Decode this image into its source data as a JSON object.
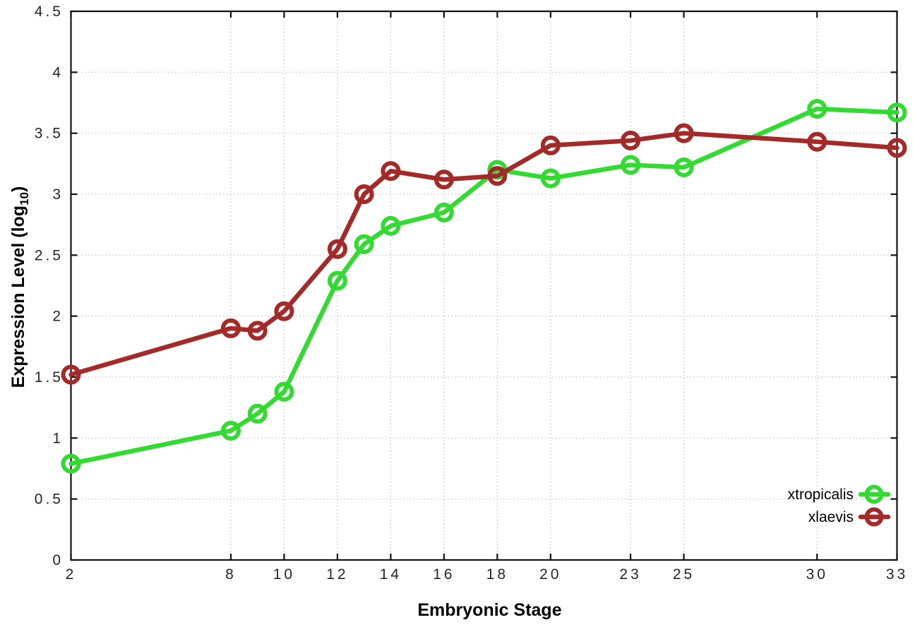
{
  "chart_data": {
    "type": "line",
    "title": "",
    "xlabel": "Embryonic Stage",
    "ylabel": "Expression Level (log10)",
    "ylabel_rich": {
      "pre": "Expression Level (log",
      "sub": "10",
      "post": ")"
    },
    "xlim": [
      2,
      33
    ],
    "ylim": [
      0,
      4.5
    ],
    "xticks": [
      2,
      8,
      10,
      12,
      14,
      16,
      18,
      20,
      23,
      25,
      30,
      33
    ],
    "xtick_labels": [
      "2",
      "8",
      "10",
      "12",
      "14",
      "16",
      "18",
      "20",
      "23",
      "25",
      "30",
      "33"
    ],
    "yticks": [
      0,
      0.5,
      1,
      1.5,
      2,
      2.5,
      3,
      3.5,
      4,
      4.5
    ],
    "ytick_labels": [
      "0",
      "0.5",
      "1",
      "1.5",
      "2",
      "2.5",
      "3",
      "3.5",
      "4",
      "4.5"
    ],
    "grid": true,
    "grid_style": "dotted",
    "legend": {
      "position": "inside-bottom-right",
      "entries": [
        "xtropicalis",
        "xlaevis"
      ]
    },
    "x": [
      2,
      8,
      9,
      10,
      12,
      13,
      14,
      16,
      18,
      20,
      23,
      25,
      30,
      33
    ],
    "series": [
      {
        "name": "xtropicalis",
        "color": "#32da32",
        "marker": "open-circle",
        "y": [
          0.79,
          1.06,
          1.2,
          1.38,
          2.29,
          2.59,
          2.74,
          2.85,
          3.2,
          3.13,
          3.24,
          3.22,
          3.7,
          3.67
        ]
      },
      {
        "name": "xlaevis",
        "color": "#a42a2a",
        "marker": "open-circle",
        "y": [
          1.52,
          1.9,
          1.88,
          2.04,
          2.55,
          3.0,
          3.19,
          3.12,
          3.15,
          3.4,
          3.44,
          3.5,
          3.43,
          3.38
        ]
      }
    ],
    "colors": {
      "background": "#ffffff",
      "border": "#111111",
      "grid": "#bfbfbf",
      "tick_label": "#262626",
      "axis_title": "#000000"
    }
  }
}
